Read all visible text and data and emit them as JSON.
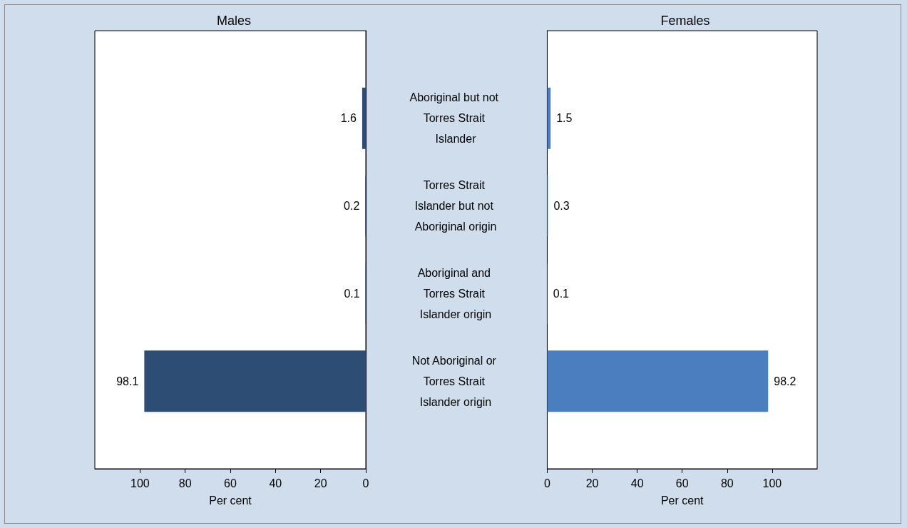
{
  "chart_data": [
    {
      "type": "bar",
      "title": "Males",
      "xlabel": "Per cent",
      "orientation": "horizontal",
      "categories": [
        "Aboriginal but not Torres Strait Islander",
        "Torres Strait Islander but not Aboriginal origin",
        "Aboriginal and Torres Strait Islander origin",
        "Not Aboriginal or Torres Strait Islander origin"
      ],
      "series": [
        {
          "color": "#2e4d74",
          "values": [
            1.6,
            0.2,
            0.1,
            98.1
          ]
        }
      ],
      "xlim": [
        120,
        0
      ],
      "xticks": [
        100,
        80,
        60,
        40,
        20,
        0
      ],
      "data_labels": true
    },
    {
      "type": "bar",
      "title": "Females",
      "xlabel": "Per cent",
      "orientation": "horizontal",
      "categories": [
        "Aboriginal but not Torres Strait Islander",
        "Torres Strait Islander but not Aboriginal origin",
        "Aboriginal and Torres Strait Islander origin",
        "Not Aboriginal or Torres Strait Islander origin"
      ],
      "series": [
        {
          "color": "#4a7ebf",
          "values": [
            1.5,
            0.3,
            0.1,
            98.2
          ]
        }
      ],
      "xlim": [
        0,
        120
      ],
      "xticks": [
        0,
        20,
        40,
        60,
        80,
        100
      ],
      "data_labels": true,
      "tick_labels": "x"
    }
  ]
}
